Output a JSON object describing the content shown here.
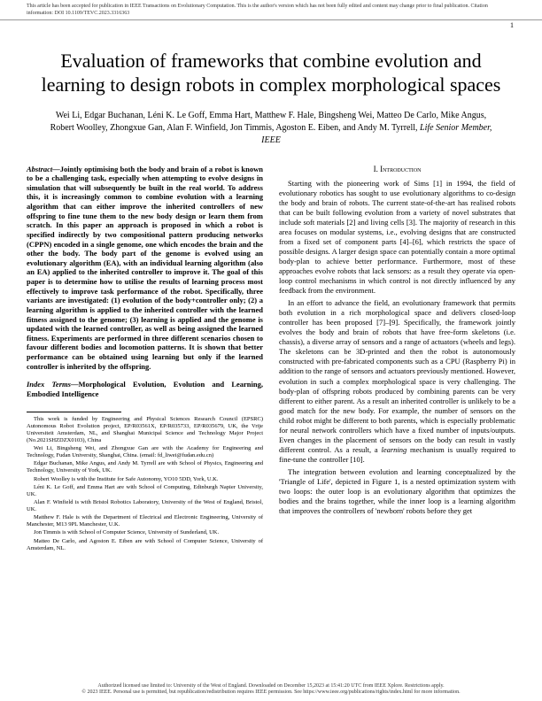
{
  "header_notice": "This article has been accepted for publication in IEEE Transactions on Evolutionary Computation. This is the author's version which has not been fully edited and content may change prior to final publication. Citation information: DOI 10.1109/TEVC.2023.3316363",
  "page_number": "1",
  "title": "Evaluation of frameworks that combine evolution and learning to design robots in complex morphological spaces",
  "authors": "Wei Li, Edgar Buchanan, Léni K. Le Goff, Emma Hart, Matthew F. Hale, Bingsheng Wei, Matteo De Carlo, Mike Angus, Robert Woolley, Zhongxue Gan, Alan F. Winfield, Jon Timmis, Agoston E. Eiben, and Andy M. Tyrrell,",
  "authors_suffix": " Life Senior Member, IEEE",
  "abstract_label": "Abstract",
  "abstract_text": "—Jointly optimising both the body and brain of a robot is known to be a challenging task, especially when attempting to evolve designs in simulation that will subsequently be built in the real world. To address this, it is increasingly common to combine evolution with a learning algorithm that can either improve the inherited controllers of new offspring to fine tune them to the new body design or learn them from scratch. In this paper an approach is proposed in which a robot is specified indirectly by two compositional pattern producing networks (CPPN) encoded in a single genome, one which encodes the brain and the other the body. The body part of the genome is evolved using an evolutionary algorithm (EA), with an individual learning algorithm (also an EA) applied to the inherited controller to improve it. The goal of this paper is to determine how to utilise the results of learning process most effectively to improve task performance of the robot. Specifically, three variants are investigated: (1) evolution of the body+controller only; (2) a learning algorithm is applied to the inherited controller with the learned fitness assigned to the genome; (3) learning is applied and the genome is updated with the learned controller, as well as being assigned the learned fitness. Experiments are performed in three different scenarios chosen to favour different bodies and locomotion patterns. It is shown that better performance can be obtained using learning but only if the learned controller is inherited by the offspring.",
  "index_label": "Index Terms",
  "index_text": "—Morphological Evolution, Evolution and Learning, Embodied Intelligence",
  "footnotes": {
    "f1": "This work is funded by Engineering and Physical Sciences Research Council (EPSRC) Autonomous Robot Evolution project, EP/R03561X, EP/R035733, EP/R035679, UK, the Vrije Universiteit Amsterdam, NL, and Shanghai Municipal Science and Technology Major Project (No.2021SHZDZX0103), China",
    "f2": "Wei Li, Bingsheng Wei, and Zhongxue Gan are with the Academy for Engineering and Technology, Fudan University, Shanghai, China. (email: fd_liwei@fudan.edu.cn)",
    "f3": "Edgar Buchanan, Mike Angus, and Andy M. Tyrrell are with School of Physics, Engineering and Technology, University of York, UK.",
    "f4": "Robert Woolley is with the Institute for Safe Autonomy, YO10 5DD, York, U.K.",
    "f5": "Léni K. Le Goff, and Emma Hart are with School of Computing, Edinburgh Napier University, UK.",
    "f6": "Alan F. Winfield is with Bristol Robotics Laboratory, University of the West of England, Bristol, UK.",
    "f7": "Matthew F. Hale is with the Department of Electrical and Electronic Engineering, University of Manchester, M13 9PL Manchester, U.K.",
    "f8": "Jon Timmis is with School of Computer Science, University of Sunderland, UK.",
    "f9": "Matteo De Carlo, and Agoston E. Eiben are with School of Computer Science, University of Amsterdam, NL."
  },
  "section_heading": "I. Introduction",
  "para1": "Starting with the pioneering work of Sims [1] in 1994, the field of evolutionary robotics has sought to use evolutionary algorithms to co-design the body and brain of robots. The current state-of-the-art has realised robots that can be built following evolution from a variety of novel substrates that include soft materials [2] and living cells [3]. The majority of research in this area focuses on modular systems, i.e., evolving designs that are constructed from a fixed set of component parts [4]–[6], which restricts the space of possible designs. A larger design space can potentially contain a more optimal body-plan to achieve better performance. Furthermore, most of these approaches evolve robots that lack sensors: as a result they operate via open-loop control mechanisms in which control is not directly influenced by any feedback from the environment.",
  "para2_a": "In an effort to advance the field, an evolutionary framework that permits both evolution in a rich morphological space and delivers closed-loop controller has been proposed [7]–[9]. Specifically, the framework jointly evolves the body and brain of robots that have free-form skeletons (i.e. chassis), a diverse array of sensors and a range of actuators (wheels and legs). The skeletons can be 3D-printed and then the robot is autonomously constructed with pre-fabricated components such as a CPU (Raspberry Pi) in addition to the range of sensors and actuators previously mentioned. However, evolution in such a complex morphological space is very challenging. The body-plan of offspring robots produced by combining parents can be very different to either parent. As a result an inherited controller is unlikely to be a good match for the new body. For example, the number of sensors on the child robot might be different to both parents, which is especially problematic for neural network controllers which have a fixed number of inputs/outputs. Even changes in the placement of sensors on the body can result in vastly different control. As a result, a ",
  "para2_italic": "learning",
  "para2_b": " mechanism is usually required to fine-tune the controller [10].",
  "para3": "The integration between evolution and learning conceptualized by the 'Triangle of Life', depicted in Figure 1, is a nested optimization system with two loops: the outer loop is an evolutionary algorithm that optimizes the bodies and the brains together, while the inner loop is a learning algorithm that improves the controllers of 'newborn' robots before they get",
  "footer1": "Authorized licensed use limited to: University of the West of England. Downloaded on December 15,2023 at 15:41:20 UTC from IEEE Xplore.  Restrictions apply.",
  "footer2": "© 2023 IEEE. Personal use is permitted, but republication/redistribution requires IEEE permission. See https://www.ieee.org/publications/rights/index.html for more information."
}
